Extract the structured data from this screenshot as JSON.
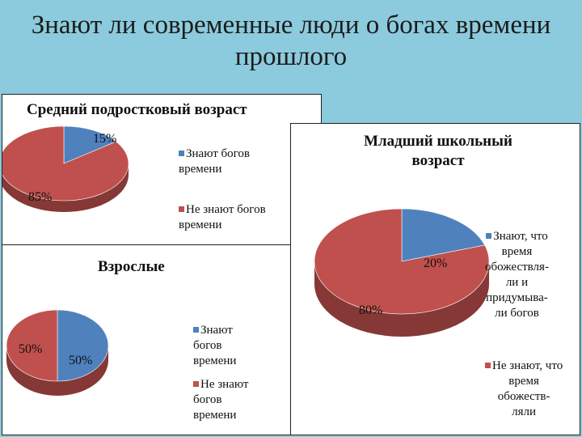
{
  "title": "Знают ли современные люди о богах времени прошлого",
  "colors": {
    "background": "#8ccbdd",
    "blue": "#4f81bd",
    "red": "#c0504d"
  },
  "chart_data": [
    {
      "type": "pie",
      "title": "Средний подростковый возраст",
      "categories": [
        "Знают богов времени",
        "Не знают богов времени"
      ],
      "values": [
        15,
        85
      ],
      "data_labels": [
        "15%",
        "85%"
      ],
      "colors": [
        "#4f81bd",
        "#c0504d"
      ],
      "legend": "right"
    },
    {
      "type": "pie",
      "title": "Младший школьный возраст",
      "categories": [
        "Знают, что время обожествляли и придумывали богов",
        "Не знают, что время обожествляли"
      ],
      "values": [
        20,
        80
      ],
      "data_labels": [
        "20%",
        "80%"
      ],
      "colors": [
        "#4f81bd",
        "#c0504d"
      ],
      "legend": "right"
    },
    {
      "type": "pie",
      "title": "Взрослые",
      "categories": [
        "Знают богов времени",
        "Не знают богов времени"
      ],
      "values": [
        50,
        50
      ],
      "data_labels": [
        "50%",
        "50%"
      ],
      "colors": [
        "#4f81bd",
        "#c0504d"
      ],
      "legend": "right"
    }
  ],
  "legends": {
    "teen": [
      "Знают богов\nвремени",
      "Не знают богов\nвремени"
    ],
    "junior": [
      "Знают, что\nвремя\nобожествля-\nли и\nпридумыва-\nли богов",
      "Не знают, что\nвремя\nобожеств-\nляли"
    ],
    "adult": [
      "Знают\nбогов\nвремени",
      "Не знают\nбогов\nвремени"
    ]
  }
}
